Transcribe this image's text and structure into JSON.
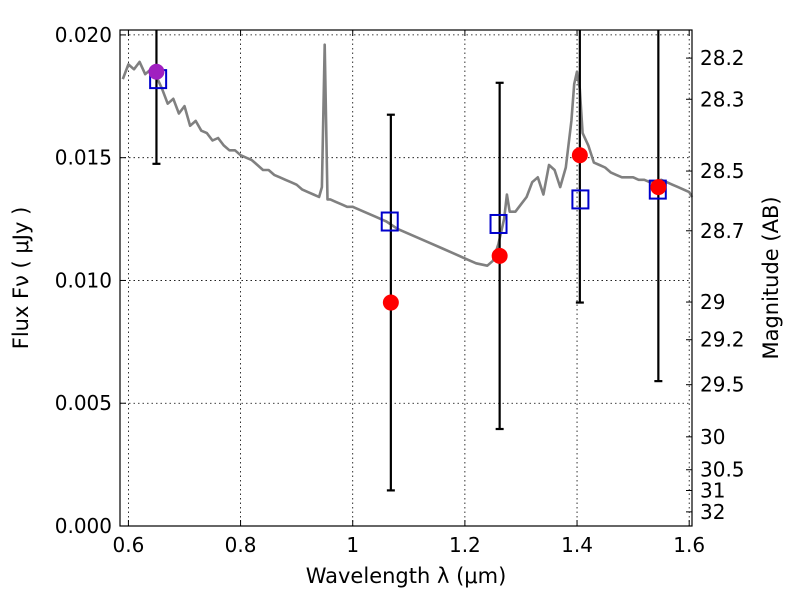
{
  "chart_data": {
    "type": "scatter",
    "xlabel": "Wavelength  λ (μm)",
    "ylabel": "Flux  Fν  ( μJy )",
    "y2label": "Magnitude (AB)",
    "xlim": [
      0.585,
      1.605
    ],
    "ylim": [
      0.0,
      0.0202
    ],
    "x_ticks": [
      "0.6",
      "0.8",
      "1",
      "1.2",
      "1.4",
      "1.6"
    ],
    "x_tick_values": [
      0.6,
      0.8,
      1.0,
      1.2,
      1.4,
      1.6
    ],
    "y_ticks": [
      "0.000",
      "0.005",
      "0.010",
      "0.015",
      "0.020"
    ],
    "y_tick_values": [
      0.0,
      0.005,
      0.01,
      0.015,
      0.02
    ],
    "y2_ticks": [
      "28.2",
      "28.3",
      "28.5",
      "28.7",
      "29",
      "29.2",
      "29.5",
      "30",
      "30.5",
      "31",
      "32"
    ],
    "y2_tick_values": [
      28.2,
      28.3,
      28.5,
      28.7,
      29.0,
      29.2,
      29.5,
      30.0,
      30.5,
      31.0,
      32.0
    ],
    "grid": true,
    "colors": {
      "model": "#808080",
      "observed": "#ff0000",
      "synthetic": "#0000cc",
      "errorbar": "#000000",
      "overlap": "#a020c0"
    },
    "series": [
      {
        "kind": "line",
        "x": [
          0.59,
          0.6,
          0.61,
          0.62,
          0.63,
          0.64,
          0.65,
          0.66,
          0.67,
          0.68,
          0.69,
          0.7,
          0.71,
          0.72,
          0.73,
          0.74,
          0.75,
          0.76,
          0.77,
          0.78,
          0.79,
          0.8,
          0.81,
          0.82,
          0.83,
          0.84,
          0.85,
          0.86,
          0.87,
          0.88,
          0.89,
          0.9,
          0.91,
          0.92,
          0.93,
          0.94,
          0.945,
          0.95,
          0.955,
          0.96,
          0.97,
          0.98,
          0.99,
          1.0,
          1.02,
          1.04,
          1.06,
          1.08,
          1.1,
          1.12,
          1.14,
          1.16,
          1.18,
          1.2,
          1.22,
          1.24,
          1.25,
          1.26,
          1.27,
          1.275,
          1.28,
          1.29,
          1.3,
          1.31,
          1.32,
          1.33,
          1.34,
          1.35,
          1.36,
          1.37,
          1.38,
          1.39,
          1.395,
          1.4,
          1.405,
          1.41,
          1.42,
          1.43,
          1.44,
          1.45,
          1.46,
          1.47,
          1.48,
          1.49,
          1.5,
          1.51,
          1.52,
          1.53,
          1.54,
          1.55,
          1.56,
          1.57,
          1.58,
          1.59,
          1.6,
          1.605
        ],
        "y": [
          0.0182,
          0.0188,
          0.0186,
          0.0189,
          0.0184,
          0.0186,
          0.0183,
          0.0178,
          0.0172,
          0.0174,
          0.0168,
          0.0171,
          0.0163,
          0.0165,
          0.0161,
          0.016,
          0.0157,
          0.0158,
          0.0155,
          0.0153,
          0.0153,
          0.0151,
          0.015,
          0.0149,
          0.0147,
          0.0145,
          0.0145,
          0.0143,
          0.0142,
          0.0141,
          0.014,
          0.0139,
          0.0137,
          0.0136,
          0.0135,
          0.0134,
          0.0138,
          0.0196,
          0.0133,
          0.0133,
          0.0132,
          0.0131,
          0.013,
          0.013,
          0.0128,
          0.0126,
          0.0124,
          0.0121,
          0.0119,
          0.0117,
          0.0115,
          0.0113,
          0.0111,
          0.0109,
          0.0107,
          0.0106,
          0.0108,
          0.0115,
          0.0125,
          0.0135,
          0.0128,
          0.0128,
          0.0131,
          0.0134,
          0.014,
          0.0142,
          0.0135,
          0.0147,
          0.0145,
          0.0138,
          0.0146,
          0.0165,
          0.018,
          0.0185,
          0.0178,
          0.016,
          0.0155,
          0.0148,
          0.0147,
          0.0146,
          0.0144,
          0.0143,
          0.0142,
          0.0142,
          0.0142,
          0.0141,
          0.0141,
          0.014,
          0.014,
          0.0141,
          0.014,
          0.0139,
          0.0138,
          0.0137,
          0.0136,
          0.0134
        ]
      },
      {
        "kind": "points",
        "marker": "filled-circle",
        "x": [
          0.65,
          1.068,
          1.262,
          1.405,
          1.545
        ],
        "y": [
          0.0185,
          0.0091,
          0.011,
          0.0151,
          0.0138
        ],
        "yerr": [
          0.00375,
          0.00765,
          0.00705,
          0.006,
          0.0079
        ]
      },
      {
        "kind": "points",
        "marker": "open-square",
        "x": [
          0.653,
          1.066,
          1.26,
          1.406,
          1.544
        ],
        "y": [
          0.0182,
          0.0124,
          0.0123,
          0.0133,
          0.0137
        ]
      }
    ]
  }
}
